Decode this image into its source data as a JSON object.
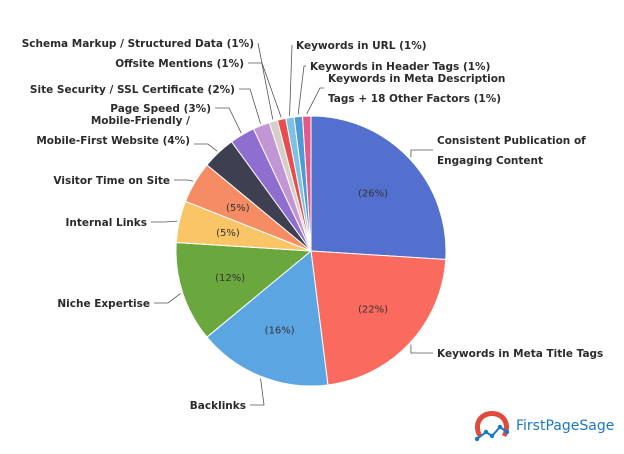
{
  "chart_data": {
    "type": "pie",
    "title": "",
    "slices": [
      {
        "label": "Consistent Publication of Engaging Content",
        "value": 26,
        "pct_label": "(26%)",
        "color": "#5470cf",
        "label_lines": [
          "Consistent Publication of",
          "Engaging Content"
        ]
      },
      {
        "label": "Keywords in Meta Title Tags",
        "value": 22,
        "pct_label": "(22%)",
        "color": "#fb6a5e",
        "label_lines": [
          "Keywords in Meta Title Tags"
        ]
      },
      {
        "label": "Backlinks",
        "value": 16,
        "pct_label": "(16%)",
        "color": "#5ba5e3",
        "label_lines": [
          "Backlinks"
        ]
      },
      {
        "label": "Niche Expertise",
        "value": 12,
        "pct_label": "(12%)",
        "color": "#6aa83d",
        "label_lines": [
          "Niche Expertise"
        ]
      },
      {
        "label": "Internal Links",
        "value": 5,
        "pct_label": "(5%)",
        "color": "#f9c566",
        "label_lines": [
          "Internal Links"
        ]
      },
      {
        "label": "Visitor Time on Site",
        "value": 5,
        "pct_label": "(5%)",
        "color": "#f58c63",
        "label_lines": [
          "Visitor Time on Site"
        ]
      },
      {
        "label": "Mobile-Friendly / Mobile-First Website (4%)",
        "value": 4,
        "pct_label": "",
        "color": "#3f3f52",
        "label_lines": [
          "Mobile-Friendly /",
          "Mobile-First Website (4%)"
        ]
      },
      {
        "label": "Page Speed (3%)",
        "value": 3,
        "pct_label": "",
        "color": "#8e6fcf",
        "label_lines": [
          "Page Speed (3%)"
        ]
      },
      {
        "label": "Site Security / SSL Certificate (2%)",
        "value": 2,
        "pct_label": "",
        "color": "#c296d5",
        "label_lines": [
          "Site Security / SSL Certificate (2%)"
        ]
      },
      {
        "label": "Schema Markup / Structured Data (1%)",
        "value": 1,
        "pct_label": "",
        "color": "#d6cfc7",
        "label_lines": [
          "Schema Markup / Structured Data (1%)"
        ]
      },
      {
        "label": "Offsite Mentions (1%)",
        "value": 1,
        "pct_label": "",
        "color": "#e84c4c",
        "label_lines": [
          "Offsite Mentions (1%)"
        ]
      },
      {
        "label": "Keywords in URL (1%)",
        "value": 1,
        "pct_label": "",
        "color": "#7ec0e6",
        "label_lines": [
          "Keywords in URL (1%)"
        ]
      },
      {
        "label": "Keywords in Header Tags (1%)",
        "value": 1,
        "pct_label": "",
        "color": "#4d9ad6",
        "label_lines": [
          "Keywords in Header Tags (1%)"
        ]
      },
      {
        "label": "Keywords in Meta Description Tags + 18 Other Factors (1%)",
        "value": 1,
        "pct_label": "",
        "color": "#e35a8a",
        "label_lines": [
          "Keywords in Meta Description",
          "Tags + 18 Other Factors (1%)"
        ]
      }
    ]
  },
  "brand": {
    "name": "FirstPageSage",
    "logo_color": "#e04a3c",
    "text_color": "#1b78c4"
  }
}
